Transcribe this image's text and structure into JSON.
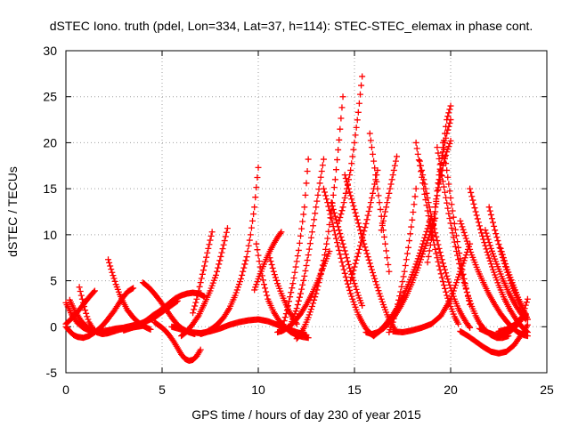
{
  "chart_data": {
    "type": "scatter",
    "title": "dSTEC Iono. truth (pdel, Lon=334, Lat=37, h=114): STEC-STEC_elemax in phase cont.",
    "xlabel": "GPS time / hours of day 230 of year 2015",
    "ylabel": "dSTEC  / TECUs",
    "xlim": [
      0,
      25
    ],
    "ylim": [
      -5,
      30
    ],
    "xticks": [
      0,
      5,
      10,
      15,
      20,
      25
    ],
    "yticks": [
      -5,
      0,
      5,
      10,
      15,
      20,
      25,
      30
    ],
    "grid": true,
    "marker": "plus",
    "color": "#ff0000",
    "series": [
      {
        "x": [
          0.0,
          0.2,
          0.4,
          0.6,
          0.9,
          1.2,
          1.5,
          1.8,
          2.1,
          2.5,
          2.9,
          3.2,
          3.5
        ],
        "y": [
          0.0,
          -0.5,
          -0.9,
          -1.1,
          -1.2,
          -1.0,
          -0.6,
          -0.1,
          0.6,
          1.7,
          3.0,
          3.8,
          4.2
        ]
      },
      {
        "x": [
          0.0,
          0.3,
          0.6,
          0.9,
          1.2,
          1.5,
          1.8,
          2.2,
          2.6,
          3.0,
          3.4,
          3.8,
          4.2,
          4.6,
          5.0,
          5.4,
          5.8
        ],
        "y": [
          2.6,
          1.3,
          0.4,
          -0.1,
          -0.4,
          -0.5,
          -0.5,
          -0.4,
          -0.2,
          -0.1,
          0.1,
          0.3,
          0.6,
          1.0,
          1.6,
          2.2,
          2.8
        ]
      },
      {
        "x": [
          0.7,
          0.8,
          0.9,
          1.0,
          1.1,
          1.2,
          1.4,
          1.6,
          1.9,
          2.2,
          2.5,
          2.8,
          3.1,
          3.4,
          3.7,
          4.0
        ],
        "y": [
          4.3,
          3.4,
          2.6,
          1.8,
          1.1,
          0.5,
          -0.2,
          -0.6,
          -0.8,
          -0.7,
          -0.5,
          -0.3,
          -0.2,
          -0.1,
          0.0,
          0.1
        ]
      },
      {
        "x": [
          0.2,
          0.5,
          0.8,
          1.1,
          1.4
        ],
        "y": [
          2.9,
          1.6,
          0.6,
          -0.1,
          -0.5
        ]
      },
      {
        "x": [
          0.0,
          0.3,
          0.6,
          0.9,
          1.2,
          1.5
        ],
        "y": [
          0.3,
          0.9,
          1.6,
          2.4,
          3.2,
          3.9
        ]
      },
      {
        "x": [
          2.2,
          2.4,
          2.6,
          2.8,
          3.0,
          3.2,
          3.5,
          3.8,
          4.1,
          4.4
        ],
        "y": [
          7.3,
          5.9,
          4.6,
          3.5,
          2.6,
          1.8,
          1.0,
          0.4,
          0.0,
          -0.3
        ]
      },
      {
        "x": [
          3.0,
          3.3,
          3.6,
          3.9,
          4.2,
          4.5,
          4.8,
          5.1,
          5.4,
          5.7,
          6.0,
          6.3,
          6.6,
          6.9,
          7.2
        ],
        "y": [
          -0.4,
          -0.2,
          0.0,
          0.3,
          0.7,
          1.2,
          1.6,
          2.1,
          2.6,
          3.1,
          3.4,
          3.6,
          3.7,
          3.6,
          3.3
        ]
      },
      {
        "x": [
          4.0,
          4.3,
          4.6,
          4.9,
          5.2,
          5.5,
          5.8,
          6.1,
          6.4,
          6.7
        ],
        "y": [
          4.8,
          4.3,
          3.6,
          2.8,
          1.9,
          1.0,
          0.2,
          -0.3,
          -0.6,
          -0.8
        ]
      },
      {
        "x": [
          4.6,
          4.8,
          5.0,
          5.2,
          5.4,
          5.6,
          5.8,
          6.0,
          6.2,
          6.4,
          6.6,
          6.8,
          7.0
        ],
        "y": [
          0.5,
          0.2,
          -0.1,
          -0.5,
          -1.0,
          -1.6,
          -2.3,
          -3.0,
          -3.5,
          -3.7,
          -3.6,
          -3.2,
          -2.5
        ]
      },
      {
        "x": [
          6.6,
          6.8,
          7.0,
          7.2,
          7.4,
          7.6
        ],
        "y": [
          1.5,
          3.0,
          4.8,
          6.6,
          8.5,
          10.3
        ]
      },
      {
        "x": [
          6.0,
          6.3,
          6.6,
          6.9,
          7.2,
          7.5,
          7.8,
          8.0,
          8.2,
          8.4
        ],
        "y": [
          -1.0,
          -0.5,
          0.3,
          1.2,
          2.5,
          3.9,
          5.6,
          7.2,
          8.9,
          10.7
        ]
      },
      {
        "x": [
          7.0,
          7.3,
          7.6,
          7.9,
          8.2,
          8.5,
          8.8,
          9.1,
          9.4,
          9.6,
          9.8,
          10.0
        ],
        "y": [
          -0.8,
          -0.6,
          -0.2,
          0.3,
          1.0,
          2.0,
          3.4,
          5.2,
          7.6,
          10.0,
          13.0,
          17.3
        ]
      },
      {
        "x": [
          5.5,
          6.0,
          6.5,
          7.0,
          7.5,
          8.0,
          8.5,
          9.0,
          9.5,
          10.0,
          10.5,
          11.0,
          11.5,
          12.0,
          12.5
        ],
        "y": [
          0.0,
          -0.3,
          -0.6,
          -0.7,
          -0.5,
          -0.2,
          0.2,
          0.5,
          0.7,
          0.8,
          0.6,
          0.2,
          -0.2,
          -0.6,
          -0.9
        ]
      },
      {
        "x": [
          9.9,
          10.1,
          10.3,
          10.5,
          10.8,
          11.1,
          11.4,
          11.7,
          12.0,
          12.3,
          12.6
        ],
        "y": [
          9.0,
          6.5,
          4.6,
          3.0,
          1.6,
          0.6,
          -0.1,
          -0.6,
          -0.9,
          -1.1,
          -1.2
        ]
      },
      {
        "x": [
          9.8,
          10.0,
          10.2,
          10.4,
          10.6,
          10.8,
          11.0,
          11.2
        ],
        "y": [
          4.0,
          5.2,
          6.3,
          7.3,
          8.2,
          9.0,
          9.7,
          10.3
        ]
      },
      {
        "x": [
          10.6,
          10.8,
          11.0,
          11.2,
          11.4,
          11.6,
          11.8,
          12.0
        ],
        "y": [
          7.5,
          6.0,
          4.7,
          3.6,
          2.6,
          1.7,
          0.9,
          0.3
        ]
      },
      {
        "x": [
          11.0,
          11.3,
          11.6,
          11.9,
          12.2,
          12.5,
          12.8,
          13.1,
          13.4,
          13.7
        ],
        "y": [
          -0.6,
          -0.4,
          0.0,
          0.6,
          1.4,
          2.4,
          3.6,
          5.0,
          6.6,
          8.2
        ]
      },
      {
        "x": [
          12.0,
          12.2,
          12.4,
          12.6,
          12.8,
          13.0,
          13.2,
          13.4,
          13.6,
          13.8,
          14.0,
          14.2,
          14.4
        ],
        "y": [
          -1.3,
          -0.8,
          0.0,
          1.0,
          2.2,
          3.6,
          5.2,
          7.2,
          9.6,
          12.6,
          16.0,
          20.3,
          25.0
        ]
      },
      {
        "x": [
          11.6,
          11.8,
          12.0,
          12.2,
          12.4,
          12.6,
          12.8,
          13.0,
          13.2,
          13.4
        ],
        "y": [
          -0.2,
          0.8,
          2.0,
          3.6,
          5.5,
          7.8,
          10.3,
          13.0,
          15.6,
          18.2
        ]
      },
      {
        "x": [
          11.2,
          11.5,
          11.8,
          12.1,
          12.4,
          12.6
        ],
        "y": [
          -0.5,
          1.8,
          4.7,
          8.3,
          13.0,
          18.2
        ]
      },
      {
        "x": [
          13.4,
          13.6,
          13.8,
          14.0,
          14.2,
          14.4,
          14.6,
          14.8,
          15.0,
          15.2,
          15.4,
          15.6,
          15.8,
          16.0
        ],
        "y": [
          15.0,
          13.5,
          11.8,
          10.0,
          8.3,
          6.6,
          5.0,
          3.6,
          2.4,
          1.3,
          0.5,
          -0.2,
          -0.7,
          -1.0
        ]
      },
      {
        "x": [
          13.8,
          14.0,
          14.2,
          14.4,
          14.6,
          14.8,
          15.0,
          15.2,
          15.4
        ],
        "y": [
          13.5,
          12.0,
          10.5,
          9.0,
          7.5,
          6.0,
          4.7,
          3.4,
          2.3
        ]
      },
      {
        "x": [
          14.5,
          14.7,
          14.9,
          15.1,
          15.3,
          15.5,
          15.7,
          15.9,
          16.1,
          16.3,
          16.5,
          16.7,
          16.9,
          17.1
        ],
        "y": [
          16.5,
          15.0,
          13.5,
          12.0,
          10.5,
          9.0,
          7.6,
          6.2,
          4.9,
          3.6,
          2.4,
          1.3,
          0.4,
          -0.3
        ]
      },
      {
        "x": [
          14.2,
          14.4,
          14.6,
          14.8,
          15.0,
          15.2,
          15.4
        ],
        "y": [
          11.5,
          13.0,
          15.0,
          17.0,
          20.0,
          23.3,
          27.2
        ]
      },
      {
        "x": [
          14.8,
          15.0,
          15.2,
          15.4,
          15.6,
          15.8,
          16.0,
          16.2
        ],
        "y": [
          5.0,
          6.5,
          8.0,
          9.6,
          11.2,
          13.0,
          15.0,
          17.0
        ]
      },
      {
        "x": [
          15.8,
          16.0,
          16.2,
          16.4,
          16.6,
          16.8
        ],
        "y": [
          21.0,
          18.0,
          15.0,
          12.0,
          9.0,
          6.0
        ]
      },
      {
        "x": [
          15.6,
          15.9,
          16.2,
          16.5,
          16.8,
          17.1,
          17.4,
          17.7,
          18.0,
          18.3,
          18.6,
          18.9,
          19.2
        ],
        "y": [
          -0.6,
          -0.8,
          -0.6,
          -0.2,
          0.4,
          1.2,
          2.2,
          3.4,
          4.8,
          6.4,
          8.2,
          10.0,
          11.8
        ]
      },
      {
        "x": [
          16.0,
          16.3,
          16.6,
          16.9,
          17.2,
          17.5,
          17.8,
          18.1,
          18.4,
          18.7,
          19.0
        ],
        "y": [
          -1.0,
          -0.5,
          0.2,
          1.0,
          2.0,
          3.2,
          4.6,
          6.2,
          8.0,
          10.0,
          12.0
        ]
      },
      {
        "x": [
          16.8,
          17.0,
          17.2,
          17.4,
          17.6,
          17.8,
          18.0,
          18.2
        ],
        "y": [
          -0.6,
          0.5,
          2.0,
          3.8,
          6.0,
          8.6,
          11.6,
          15.0
        ]
      },
      {
        "x": [
          16.4,
          16.6,
          16.8,
          17.0,
          17.2
        ],
        "y": [
          10.5,
          12.5,
          14.5,
          16.5,
          18.5
        ]
      },
      {
        "x": [
          18.2,
          18.4,
          18.6,
          18.8,
          19.0,
          19.2,
          19.4,
          19.6,
          19.8,
          20.0,
          20.2,
          20.4
        ],
        "y": [
          20.0,
          17.5,
          15.0,
          12.6,
          10.4,
          8.4,
          6.6,
          4.9,
          3.4,
          2.2,
          1.1,
          0.3
        ]
      },
      {
        "x": [
          18.4,
          18.6,
          18.8,
          19.0,
          19.2,
          19.4,
          19.6,
          19.8,
          20.0,
          20.2,
          20.4,
          20.6,
          20.8,
          21.0
        ],
        "y": [
          18.0,
          16.0,
          14.0,
          12.0,
          10.2,
          8.5,
          6.9,
          5.5,
          4.2,
          3.0,
          2.0,
          1.2,
          0.5,
          -0.1
        ]
      },
      {
        "x": [
          19.3,
          19.5,
          19.7,
          19.9,
          20.1,
          20.3,
          20.5,
          20.7,
          20.9,
          21.1,
          21.3,
          21.5,
          21.8,
          22.1,
          22.4,
          22.7,
          23.0
        ],
        "y": [
          19.5,
          17.0,
          14.6,
          12.3,
          10.2,
          8.2,
          6.4,
          4.8,
          3.4,
          2.2,
          1.2,
          0.4,
          -0.4,
          -0.9,
          -1.2,
          -1.2,
          -1.0
        ]
      },
      {
        "x": [
          18.8,
          19.0,
          19.2,
          19.4,
          19.6,
          19.8,
          20.0
        ],
        "y": [
          7.0,
          9.5,
          12.5,
          16.0,
          19.5,
          22.5,
          24.0
        ]
      },
      {
        "x": [
          19.0,
          19.2,
          19.4,
          19.6,
          19.8,
          20.0
        ],
        "y": [
          10.0,
          13.0,
          16.5,
          19.0,
          21.0,
          22.5
        ]
      },
      {
        "x": [
          19.6,
          19.8,
          20.0,
          20.2,
          20.4,
          20.6,
          20.8,
          21.0
        ],
        "y": [
          20.0,
          17.0,
          14.0,
          11.2,
          8.6,
          6.2,
          4.2,
          2.4
        ]
      },
      {
        "x": [
          19.2,
          19.4,
          19.6,
          19.8,
          20.0
        ],
        "y": [
          13.0,
          15.5,
          17.5,
          19.0,
          20.2
        ]
      },
      {
        "x": [
          17.0,
          17.5,
          18.0,
          18.5,
          19.0,
          19.5,
          20.0,
          20.5,
          21.0
        ],
        "y": [
          -0.5,
          -0.6,
          -0.4,
          -0.1,
          0.3,
          1.2,
          3.0,
          6.0,
          9.0
        ]
      },
      {
        "x": [
          20.5,
          20.8,
          21.1,
          21.4,
          21.7,
          22.0,
          22.3,
          22.6,
          22.9,
          23.2,
          23.5,
          23.8,
          24.0
        ],
        "y": [
          11.5,
          9.6,
          7.8,
          6.2,
          4.8,
          3.5,
          2.4,
          1.4,
          0.6,
          -0.1,
          -0.6,
          -0.9,
          -1.0
        ]
      },
      {
        "x": [
          21.0,
          21.3,
          21.6,
          21.9,
          22.2,
          22.5,
          22.8,
          23.1,
          23.4,
          23.7,
          24.0
        ],
        "y": [
          15.0,
          12.5,
          10.2,
          8.1,
          6.2,
          4.5,
          3.0,
          1.8,
          0.8,
          0.0,
          -0.6
        ]
      },
      {
        "x": [
          21.8,
          22.1,
          22.4,
          22.7,
          23.0,
          23.3,
          23.6,
          23.9
        ],
        "y": [
          10.5,
          8.5,
          6.8,
          5.2,
          3.8,
          2.6,
          1.6,
          0.8
        ]
      },
      {
        "x": [
          22.0,
          22.3,
          22.6,
          22.9,
          23.2,
          23.5,
          23.8,
          24.0
        ],
        "y": [
          13.0,
          10.5,
          8.2,
          6.2,
          4.4,
          2.9,
          1.6,
          0.8
        ]
      },
      {
        "x": [
          22.6,
          22.9,
          23.2,
          23.5,
          23.8,
          24.0
        ],
        "y": [
          8.5,
          6.5,
          4.8,
          3.2,
          1.8,
          0.8
        ]
      },
      {
        "x": [
          20.5,
          20.9,
          21.3,
          21.7,
          22.1,
          22.5,
          22.9,
          23.3,
          23.7,
          24.0
        ],
        "y": [
          -0.5,
          -1.0,
          -1.6,
          -2.2,
          -2.7,
          -2.9,
          -2.7,
          -2.0,
          -0.8,
          0.2
        ]
      },
      {
        "x": [
          21.5,
          21.9,
          22.3,
          22.7,
          23.1,
          23.5,
          23.9
        ],
        "y": [
          -0.2,
          -0.6,
          -0.9,
          -0.9,
          -0.5,
          0.3,
          1.4
        ]
      },
      {
        "x": [
          22.5,
          22.9,
          23.3,
          23.7,
          24.0
        ],
        "y": [
          -0.5,
          -0.3,
          0.2,
          1.0,
          3.0
        ]
      }
    ]
  }
}
